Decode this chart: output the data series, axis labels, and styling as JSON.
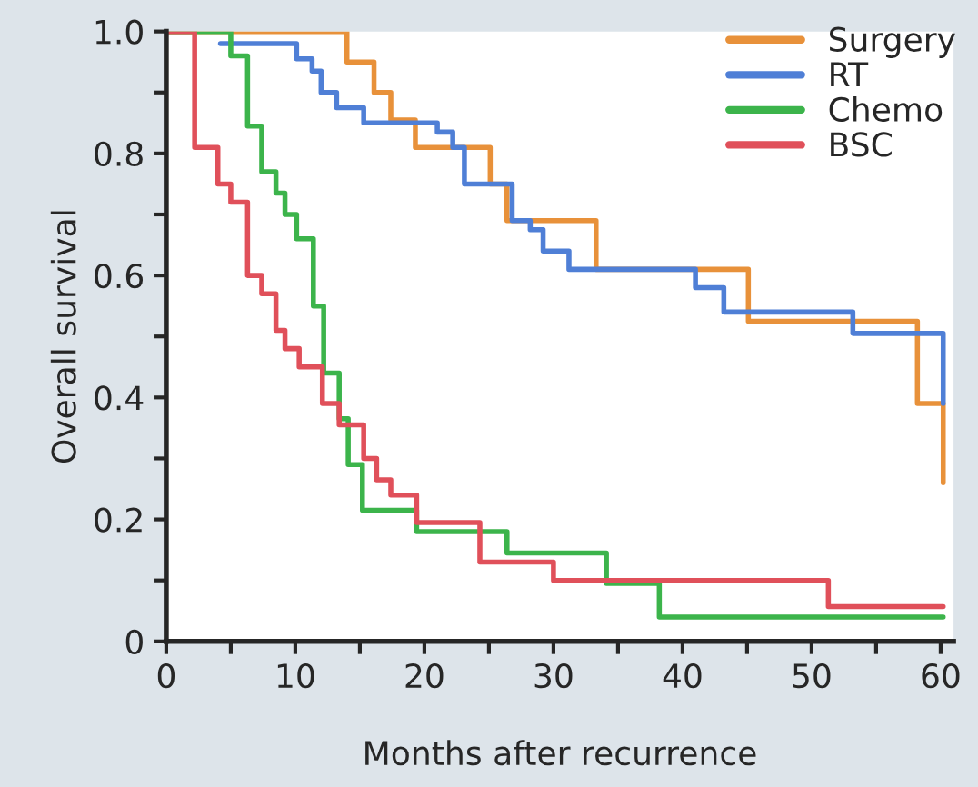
{
  "chart_data": {
    "type": "step",
    "xlabel": "Months after recurrence",
    "ylabel": "Overall survival",
    "xlim": [
      0,
      61
    ],
    "ylim": [
      0,
      1.0
    ],
    "xticks": [
      0,
      {
        "value": 5,
        "label": null
      },
      10,
      {
        "value": 15,
        "label": null
      },
      20,
      {
        "value": 25,
        "label": null
      },
      30,
      {
        "value": 35,
        "label": null
      },
      40,
      {
        "value": 45,
        "label": null
      },
      50,
      {
        "value": 55,
        "label": null
      },
      60
    ],
    "yticks": [
      0,
      {
        "value": 0.1,
        "label": null
      },
      0.2,
      {
        "value": 0.3,
        "label": null
      },
      0.4,
      {
        "value": 0.5,
        "label": null
      },
      0.6,
      {
        "value": 0.7,
        "label": null
      },
      0.8,
      {
        "value": 0.9,
        "label": null
      },
      {
        "value": 1.0,
        "label": "1.0"
      }
    ],
    "grid": false,
    "legend": "top right",
    "marker": "none",
    "line_style": "solid",
    "series": [
      {
        "name": "Surgery",
        "color": "#e8913a",
        "x": [
          0,
          14.0,
          16.1,
          17.4,
          19.3,
          25.1,
          26.4,
          33.3,
          45.1,
          58.2,
          60.2,
          60.2
        ],
        "values": [
          1.0,
          0.95,
          0.9,
          0.855,
          0.81,
          0.75,
          0.69,
          0.61,
          0.525,
          0.39,
          0.26,
          0.26
        ]
      },
      {
        "name": "RT",
        "color": "#4f7fd6",
        "x": [
          4.2,
          10.1,
          11.3,
          12.0,
          13.2,
          15.3,
          21.0,
          22.2,
          23.1,
          26.8,
          28.2,
          29.2,
          31.2,
          41.0,
          43.2,
          53.2,
          60.2,
          60.2
        ],
        "values": [
          0.98,
          0.955,
          0.935,
          0.9,
          0.875,
          0.85,
          0.835,
          0.81,
          0.75,
          0.69,
          0.675,
          0.64,
          0.61,
          0.58,
          0.54,
          0.505,
          0.39,
          0.39
        ]
      },
      {
        "name": "Chemo",
        "color": "#3cb44b",
        "x": [
          0,
          5.0,
          6.3,
          7.4,
          8.5,
          9.2,
          10.1,
          11.4,
          12.2,
          13.4,
          14.1,
          15.2,
          19.4,
          26.4,
          34.1,
          38.2,
          60.2
        ],
        "values": [
          1.0,
          0.96,
          0.845,
          0.77,
          0.735,
          0.7,
          0.66,
          0.55,
          0.44,
          0.365,
          0.29,
          0.215,
          0.18,
          0.145,
          0.095,
          0.04,
          0.04
        ]
      },
      {
        "name": "BSC",
        "color": "#e0505a",
        "x": [
          0,
          2.2,
          4.0,
          5.0,
          6.3,
          7.4,
          8.5,
          9.2,
          10.3,
          12.1,
          13.4,
          15.3,
          16.3,
          17.4,
          19.4,
          24.3,
          30.0,
          51.3,
          60.2
        ],
        "values": [
          1.0,
          0.81,
          0.75,
          0.72,
          0.6,
          0.57,
          0.51,
          0.48,
          0.45,
          0.39,
          0.355,
          0.3,
          0.265,
          0.24,
          0.195,
          0.13,
          0.1,
          0.057,
          0.057
        ]
      }
    ]
  }
}
